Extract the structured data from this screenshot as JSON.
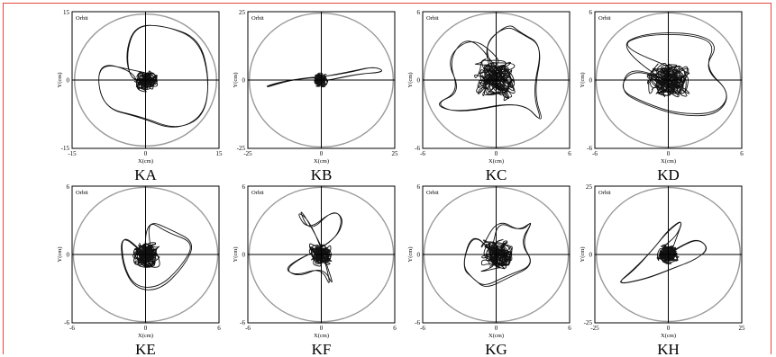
{
  "figure": {
    "accent_border": "#e0483c",
    "orbit_line_color": "#111111",
    "circle_color": "#9a9a9a"
  },
  "chart_data": [
    {
      "type": "scatter",
      "panel_label": "KA",
      "legend": "Orbit",
      "xlabel": "X(cm)",
      "ylabel": "Y(cm)",
      "xlim": [
        -15,
        15
      ],
      "ylim": [
        -15,
        15
      ],
      "xticks": [
        "-15",
        "0",
        "15"
      ],
      "yticks": [
        "15",
        "0",
        "-15"
      ],
      "boundary_radius": 14.5,
      "core_radius": 3.0,
      "seed": 11,
      "excursion": [
        [
          -2,
          2
        ],
        [
          -10,
          4
        ],
        [
          -9,
          -6
        ],
        [
          -1,
          -8
        ],
        [
          6,
          -11
        ],
        [
          12,
          -8
        ],
        [
          13,
          0
        ],
        [
          11,
          9
        ],
        [
          4,
          12
        ],
        [
          -2,
          12
        ],
        [
          -4,
          6
        ],
        [
          -3,
          0
        ],
        [
          0,
          0
        ]
      ]
    },
    {
      "type": "scatter",
      "panel_label": "KB",
      "legend": "Orbit",
      "xlabel": "X(cm)",
      "ylabel": "Y(cm)",
      "xlim": [
        -25,
        25
      ],
      "ylim": [
        -25,
        25
      ],
      "xticks": [
        "-25",
        "0",
        "25"
      ],
      "yticks": [
        "25",
        "0",
        "-25"
      ],
      "boundary_radius": 24.5,
      "core_radius": 3.0,
      "seed": 23,
      "excursion": [
        [
          -5,
          1
        ],
        [
          -15,
          -1
        ],
        [
          -20,
          -3
        ],
        [
          -10,
          0
        ],
        [
          0,
          1
        ],
        [
          10,
          3
        ],
        [
          18,
          5
        ],
        [
          22,
          3
        ],
        [
          12,
          2
        ],
        [
          3,
          0
        ],
        [
          0,
          0
        ]
      ]
    },
    {
      "type": "scatter",
      "panel_label": "KC",
      "legend": "Orbit",
      "xlabel": "X(cm)",
      "ylabel": "Y(cm)",
      "xlim": [
        -6,
        6
      ],
      "ylim": [
        -6,
        6
      ],
      "xticks": [
        "-6",
        "0",
        "6"
      ],
      "yticks": [
        "6",
        "0",
        "-6"
      ],
      "boundary_radius": 5.9,
      "core_radius": 2.2,
      "seed": 37,
      "excursion": [
        [
          -2,
          4
        ],
        [
          -4,
          2
        ],
        [
          -3,
          -1
        ],
        [
          -5,
          -2
        ],
        [
          -3,
          -3
        ],
        [
          2,
          -2
        ],
        [
          4,
          -4
        ],
        [
          3,
          -1
        ],
        [
          4,
          3
        ],
        [
          2,
          4
        ],
        [
          1,
          5
        ],
        [
          -1,
          3
        ],
        [
          0,
          0
        ]
      ]
    },
    {
      "type": "scatter",
      "panel_label": "KD",
      "legend": "Orbit",
      "xlabel": "X(cm)",
      "ylabel": "Y(cm)",
      "xlim": [
        -6,
        6
      ],
      "ylim": [
        -6,
        6
      ],
      "xticks": [
        "-6",
        "0",
        "6"
      ],
      "yticks": [
        "6",
        "0",
        "-6"
      ],
      "boundary_radius": 5.9,
      "core_radius": 2.2,
      "seed": 53,
      "excursion": [
        [
          -4,
          3
        ],
        [
          -2,
          4
        ],
        [
          2,
          4
        ],
        [
          4,
          3
        ],
        [
          3,
          1
        ],
        [
          5,
          -1
        ],
        [
          4,
          -3
        ],
        [
          1,
          -3
        ],
        [
          -2,
          -2
        ],
        [
          -4,
          -1
        ],
        [
          -3,
          1
        ],
        [
          0,
          0
        ]
      ]
    },
    {
      "type": "scatter",
      "panel_label": "KE",
      "legend": "Orbit",
      "xlabel": "X(cm)",
      "ylabel": "Y(cm)",
      "xlim": [
        -6,
        6
      ],
      "ylim": [
        -6,
        6
      ],
      "xticks": [
        "-6",
        "0",
        "6"
      ],
      "yticks": [
        "6",
        "0",
        "-6"
      ],
      "boundary_radius": 5.9,
      "core_radius": 1.5,
      "seed": 71,
      "excursion": [
        [
          0,
          3
        ],
        [
          2,
          2
        ],
        [
          4,
          1
        ],
        [
          3,
          -1
        ],
        [
          1,
          -3
        ],
        [
          -1,
          -3
        ],
        [
          -2,
          -1
        ],
        [
          -2,
          2
        ],
        [
          0,
          0
        ]
      ]
    },
    {
      "type": "scatter",
      "panel_label": "KF",
      "legend": "Orbit",
      "xlabel": "X(cm)",
      "ylabel": "Y(cm)",
      "xlim": [
        -6,
        6
      ],
      "ylim": [
        -6,
        6
      ],
      "xticks": [
        "-6",
        "0",
        "6"
      ],
      "yticks": [
        "6",
        "0",
        "-6"
      ],
      "boundary_radius": 5.9,
      "core_radius": 1.3,
      "seed": 89,
      "excursion": [
        [
          -1,
          3
        ],
        [
          -2,
          4
        ],
        [
          -1,
          2
        ],
        [
          1,
          4
        ],
        [
          2,
          3
        ],
        [
          1,
          1
        ],
        [
          -3,
          -1
        ],
        [
          -2,
          -2
        ],
        [
          0,
          -1
        ],
        [
          1,
          -3
        ],
        [
          0,
          0
        ]
      ]
    },
    {
      "type": "scatter",
      "panel_label": "KG",
      "legend": "Orbit",
      "xlabel": "X(cm)",
      "ylabel": "Y(cm)",
      "xlim": [
        -6,
        6
      ],
      "ylim": [
        -6,
        6
      ],
      "xticks": [
        "-6",
        "0",
        "6"
      ],
      "yticks": [
        "6",
        "0",
        "-6"
      ],
      "boundary_radius": 5.9,
      "core_radius": 1.6,
      "seed": 97,
      "excursion": [
        [
          0,
          3
        ],
        [
          2,
          2
        ],
        [
          3,
          3
        ],
        [
          2,
          1
        ],
        [
          3,
          -1
        ],
        [
          1,
          -2
        ],
        [
          -1,
          -3
        ],
        [
          -2,
          -2
        ],
        [
          -3,
          -1
        ],
        [
          -2,
          2
        ],
        [
          0,
          0
        ]
      ]
    },
    {
      "type": "scatter",
      "panel_label": "KH",
      "legend": "Orbit",
      "xlabel": "X(cm)",
      "ylabel": "Y(cm)",
      "xlim": [
        -25,
        25
      ],
      "ylim": [
        -25,
        25
      ],
      "xticks": [
        "-25",
        "0",
        "25"
      ],
      "yticks": [
        "25",
        "0",
        "-25"
      ],
      "boundary_radius": 24.5,
      "core_radius": 4.5,
      "seed": 113,
      "excursion": [
        [
          3,
          7
        ],
        [
          5,
          13
        ],
        [
          0,
          9
        ],
        [
          -5,
          2
        ],
        [
          -12,
          -6
        ],
        [
          -18,
          -11
        ],
        [
          -8,
          -9
        ],
        [
          2,
          -5
        ],
        [
          9,
          -2
        ],
        [
          14,
          2
        ],
        [
          10,
          6
        ],
        [
          4,
          3
        ],
        [
          0,
          0
        ]
      ]
    }
  ]
}
